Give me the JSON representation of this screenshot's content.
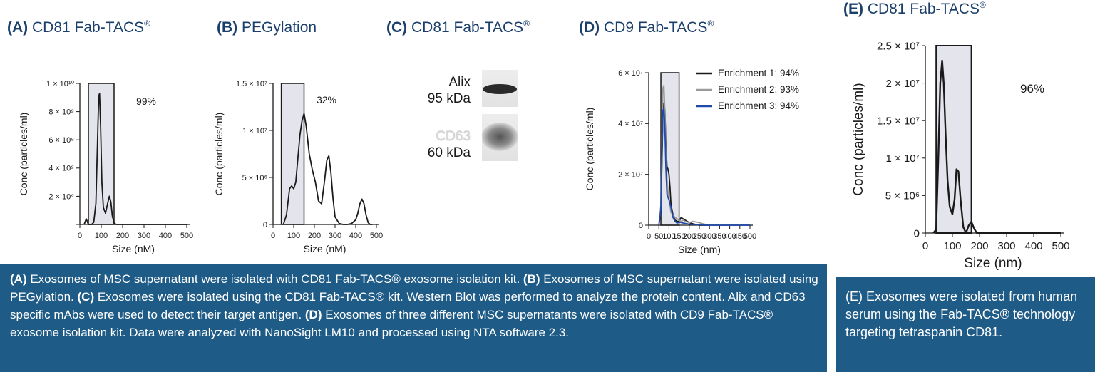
{
  "panels": {
    "A": {
      "letter": "(A)",
      "title": "CD81 Fab-TACS",
      "mark": "®"
    },
    "B": {
      "letter": "(B)",
      "title": "PEGylation",
      "mark": ""
    },
    "C": {
      "letter": "(C)",
      "title": "CD81 Fab-TACS",
      "mark": "®"
    },
    "D": {
      "letter": "(D)",
      "title": "CD9 Fab-TACS",
      "mark": "®"
    },
    "E": {
      "letter": "(E)",
      "title": "CD81 Fab-TACS",
      "mark": "®"
    }
  },
  "western_blot": {
    "band1_name": "Alix",
    "band1_size": "95 kDa",
    "band2_name": "CD63",
    "band2_size": "60 kDa"
  },
  "chart_data": [
    {
      "id": "A",
      "type": "line",
      "title": "(A) CD81 Fab-TACS®",
      "xlabel": "Size (nM)",
      "ylabel": "Conc (particles/ml)",
      "xlim": [
        0,
        500
      ],
      "ylim": [
        0,
        10000000000
      ],
      "xticks": [
        0,
        100,
        200,
        300,
        400,
        500
      ],
      "xtick_labels": [
        "0",
        "100",
        "200",
        "300",
        "400",
        "500"
      ],
      "yticks": [
        0,
        2000000000,
        4000000000,
        6000000000,
        8000000000,
        10000000000
      ],
      "ytick_labels": [
        "",
        "2 × 10⁹",
        "4 × 10⁹",
        "6 × 10⁹",
        "8 × 10⁹",
        "1 × 10¹⁰"
      ],
      "gate": [
        40,
        160
      ],
      "annotation": "99%",
      "series": [
        {
          "color": "#1a1a1a",
          "x": [
            20,
            30,
            40,
            55,
            65,
            75,
            82,
            88,
            92,
            97,
            103,
            110,
            120,
            130,
            138,
            145,
            152,
            160,
            170,
            200,
            500
          ],
          "y": [
            0,
            400000000,
            0,
            0,
            150000000,
            1500000000,
            5500000000,
            9000000000,
            9300000000,
            7000000000,
            3000000000,
            1200000000,
            800000000,
            1500000000,
            2000000000,
            1600000000,
            600000000,
            100000000,
            0,
            0,
            0
          ]
        }
      ]
    },
    {
      "id": "B",
      "type": "line",
      "title": "(B) PEGylation",
      "xlabel": "Size (nM)",
      "ylabel": "Conc (particles/ml)",
      "xlim": [
        0,
        500
      ],
      "ylim": [
        0,
        15000000
      ],
      "xticks": [
        0,
        100,
        200,
        300,
        400,
        500
      ],
      "xtick_labels": [
        "0",
        "100",
        "200",
        "300",
        "400",
        "500"
      ],
      "yticks": [
        0,
        5000000,
        10000000,
        15000000
      ],
      "ytick_labels": [
        "0",
        "5 × 10⁶",
        "1 × 10⁷",
        "1.5 × 10⁷"
      ],
      "gate": [
        40,
        150
      ],
      "annotation": "32%",
      "series": [
        {
          "color": "#1a1a1a",
          "x": [
            50,
            65,
            80,
            90,
            100,
            110,
            120,
            130,
            140,
            150,
            160,
            175,
            190,
            205,
            220,
            235,
            250,
            260,
            270,
            280,
            290,
            300,
            320,
            340,
            360,
            380,
            400,
            410,
            420,
            430,
            440,
            450,
            460,
            470,
            480
          ],
          "y": [
            0,
            1000000,
            3800000,
            4100000,
            3800000,
            4500000,
            7000000,
            9500000,
            11000000,
            11800000,
            10500000,
            7500000,
            5800000,
            4500000,
            2500000,
            2200000,
            4800000,
            6800000,
            7300000,
            5500000,
            2800000,
            800000,
            100000,
            0,
            0,
            100000,
            500000,
            1200000,
            2200000,
            2700000,
            2200000,
            1000000,
            200000,
            0,
            0
          ]
        }
      ]
    },
    {
      "id": "D",
      "type": "line",
      "title": "(D) CD9 Fab-TACS®",
      "xlabel": "Size (nm)",
      "ylabel": "Conc (particles/ml)",
      "xlim": [
        0,
        500
      ],
      "ylim": [
        0,
        60000000
      ],
      "xticks": [
        0,
        50,
        100,
        150,
        200,
        250,
        300,
        350,
        400,
        450,
        500
      ],
      "xtick_labels": [
        "0",
        "50",
        "100",
        "150",
        "200",
        "250",
        "300",
        "350",
        "400",
        "450",
        "500"
      ],
      "yticks": [
        0,
        20000000,
        40000000,
        60000000
      ],
      "ytick_labels": [
        "0",
        "2 × 10⁷",
        "4 × 10⁷",
        "6 × 10⁷"
      ],
      "gate": [
        60,
        150
      ],
      "legend_position": "top-right",
      "series": [
        {
          "name": "Enrichment 1: 94%",
          "color": "#1a1a1a",
          "x": [
            50,
            60,
            65,
            70,
            75,
            80,
            85,
            90,
            95,
            100,
            105,
            110,
            120,
            130,
            140,
            150,
            160,
            170,
            180,
            200,
            220,
            250,
            300,
            500
          ],
          "y": [
            0,
            5000000,
            25000000,
            43000000,
            48000000,
            45000000,
            32000000,
            23000000,
            22000000,
            20000000,
            15000000,
            8000000,
            4000000,
            2000000,
            1500000,
            1500000,
            3000000,
            2500000,
            2000000,
            1000000,
            500000,
            0,
            0,
            0
          ]
        },
        {
          "name": "Enrichment 2: 93%",
          "color": "#9a9a9a",
          "x": [
            50,
            60,
            65,
            70,
            75,
            80,
            85,
            90,
            95,
            100,
            105,
            110,
            120,
            130,
            140,
            150,
            160,
            170,
            180,
            200,
            220,
            250,
            270,
            300,
            500
          ],
          "y": [
            0,
            8000000,
            30000000,
            54000000,
            55000000,
            44000000,
            28000000,
            18000000,
            13000000,
            10000000,
            8000000,
            5000000,
            4000000,
            3000000,
            2500000,
            2000000,
            1500000,
            2000000,
            1500000,
            1000000,
            1500000,
            1000000,
            500000,
            0,
            0
          ]
        },
        {
          "name": "Enrichment 3: 94%",
          "color": "#1f4aa8",
          "x": [
            50,
            60,
            65,
            70,
            75,
            80,
            85,
            90,
            95,
            100,
            110,
            120,
            130,
            140,
            150,
            160,
            180,
            200,
            250,
            300,
            500
          ],
          "y": [
            0,
            6000000,
            28000000,
            45000000,
            46000000,
            38000000,
            22000000,
            12000000,
            11000000,
            10000000,
            7000000,
            3000000,
            1500000,
            800000,
            1200000,
            1000000,
            700000,
            400000,
            200000,
            0,
            0
          ]
        }
      ]
    },
    {
      "id": "E",
      "type": "line",
      "title": "(E) CD81 Fab-TACS®",
      "xlabel": "Size (nm)",
      "ylabel": "Conc (particles/ml)",
      "xlim": [
        0,
        500
      ],
      "ylim": [
        0,
        25000000
      ],
      "xticks": [
        0,
        100,
        200,
        300,
        400,
        500
      ],
      "xtick_labels": [
        "0",
        "100",
        "200",
        "300",
        "400",
        "500"
      ],
      "yticks": [
        0,
        5000000,
        10000000,
        15000000,
        20000000,
        25000000
      ],
      "ytick_labels": [
        "0",
        "5 × 10⁶",
        "1 × 10⁷",
        "1.5 × 10⁷",
        "2 × 10⁷",
        "2.5 × 10⁷"
      ],
      "gate": [
        40,
        170
      ],
      "annotation": "96%",
      "series": [
        {
          "color": "#1a1a1a",
          "x": [
            30,
            40,
            48,
            55,
            62,
            68,
            75,
            82,
            90,
            100,
            108,
            115,
            122,
            130,
            140,
            150,
            160,
            170,
            180,
            190,
            500
          ],
          "y": [
            0,
            500000,
            10000000,
            20000000,
            23000000,
            20000000,
            13000000,
            7000000,
            3500000,
            2500000,
            4500000,
            8500000,
            8200000,
            4500000,
            800000,
            0,
            1000000,
            1500000,
            600000,
            0,
            0
          ]
        }
      ]
    }
  ],
  "captions": {
    "main": [
      {
        "bold": "(A)",
        "text": " Exosomes of MSC supernatant were isolated with CD81 Fab-TACS® exosome isolation kit. "
      },
      {
        "bold": "(B)",
        "text": " Exosomes of MSC supernatant were isolated using PEGylation. "
      },
      {
        "bold": "(C)",
        "text": " Exosomes were isolated using the CD81 Fab-TACS® kit. Western Blot was performed to analyze the protein content. Alix and CD63 specific mAbs were used to detect their target antigen. "
      },
      {
        "bold": "(D)",
        "text": " Exosomes of three different MSC supernatants were isolated with CD9 Fab-TACS® exosome isolation kit. Data were analyzed with NanoSight LM10 and processed using NTA software 2.3."
      }
    ],
    "side": [
      {
        "bold": "(E)",
        "text": " Exosomes were isolated from human serum using the Fab-TACS® technology targeting tetraspanin CD81."
      }
    ]
  },
  "colors": {
    "title": "#1b3f6b",
    "caption_bg": "#1e5b87",
    "gate_fill": "#e4e4ec",
    "line": "#1a1a1a"
  }
}
